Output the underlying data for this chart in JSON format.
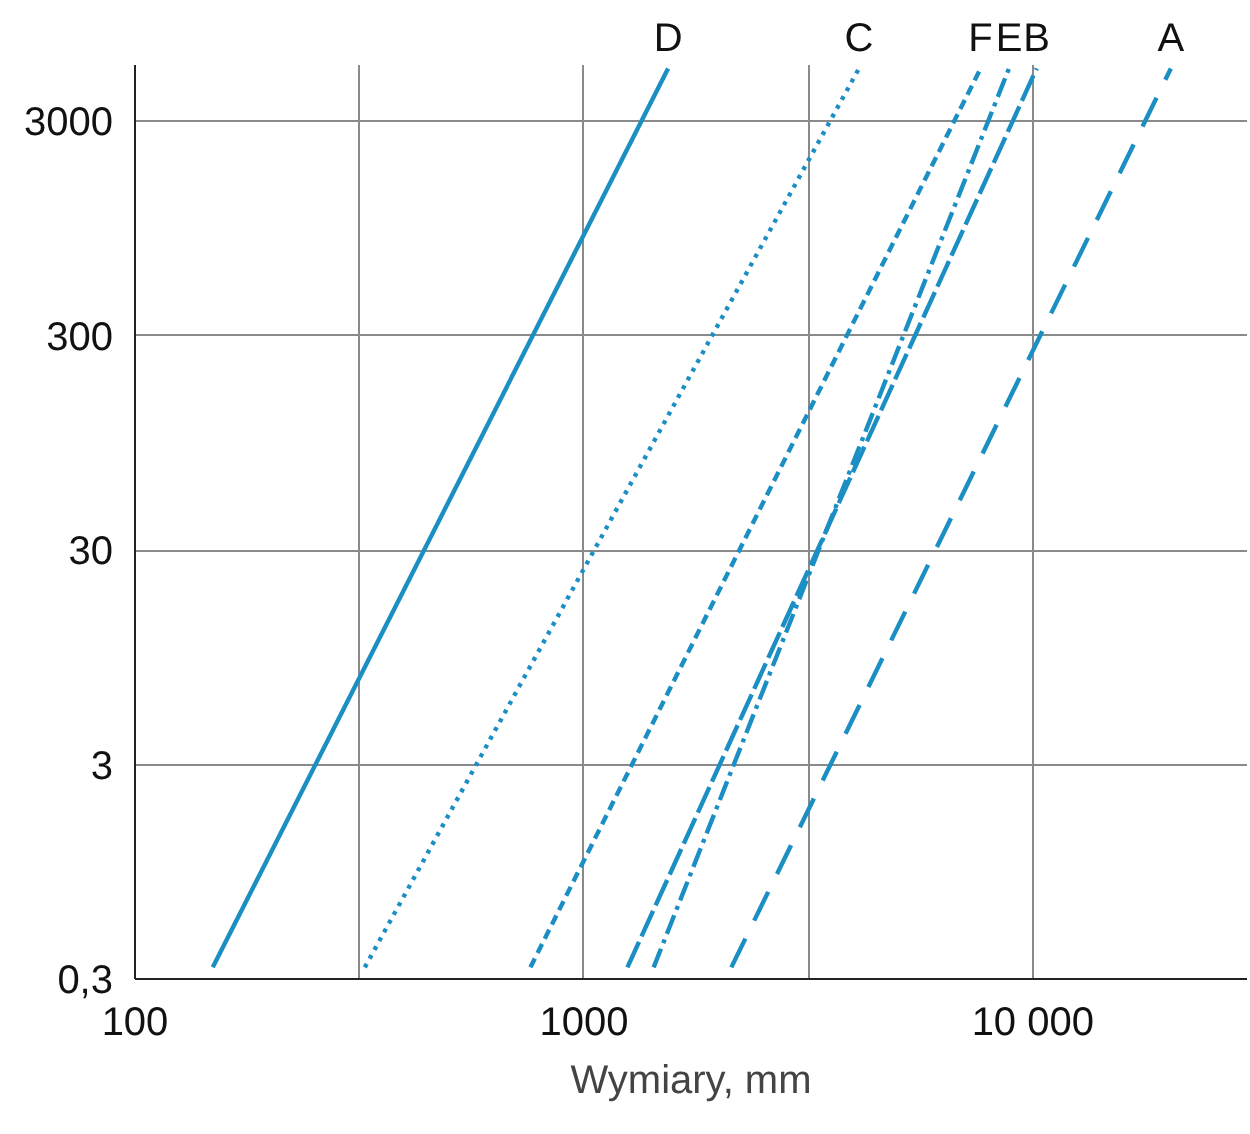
{
  "chart_data": {
    "type": "line",
    "xlabel": "Wymiary, mm",
    "log": "xy",
    "grid": true,
    "marker": "none",
    "xlim": [
      100,
      30000
    ],
    "ylim": [
      0.3,
      5500
    ],
    "xticks": [
      100,
      {
        "value": 316,
        "label": null
      },
      1000,
      {
        "value": 3160,
        "label": null
      },
      {
        "value": 10000,
        "label": "10 000"
      }
    ],
    "yticks": [
      {
        "value": 0.3,
        "label": "0,3"
      },
      3,
      30,
      300,
      3000
    ],
    "series": [
      {
        "name": "D",
        "color": "#1b8fc3",
        "line_style": "solid",
        "x": [
          149,
          1540
        ],
        "values": [
          0.34,
          5300
        ]
      },
      {
        "name": "C",
        "color": "#1b8fc3",
        "line_style": "dotted",
        "x": [
          325,
          4100
        ],
        "values": [
          0.34,
          5300
        ]
      },
      {
        "name": "F",
        "color": "#1b8fc3",
        "line_style": "dashed",
        "x": [
          760,
          7650
        ],
        "values": [
          0.34,
          5300
        ]
      },
      {
        "name": "E",
        "color": "#1b8fc3",
        "line_style": "dashdot",
        "x": [
          1430,
          8850
        ],
        "values": [
          0.34,
          5300
        ]
      },
      {
        "name": "B",
        "color": "#1b8fc3",
        "line_style": "longdash",
        "x": [
          1250,
          10200
        ],
        "values": [
          0.34,
          5300
        ]
      },
      {
        "name": "A",
        "color": "#1b8fc3",
        "line_style": "sparsedash",
        "x": [
          2130,
          20300
        ],
        "values": [
          0.34,
          5300
        ]
      }
    ]
  }
}
